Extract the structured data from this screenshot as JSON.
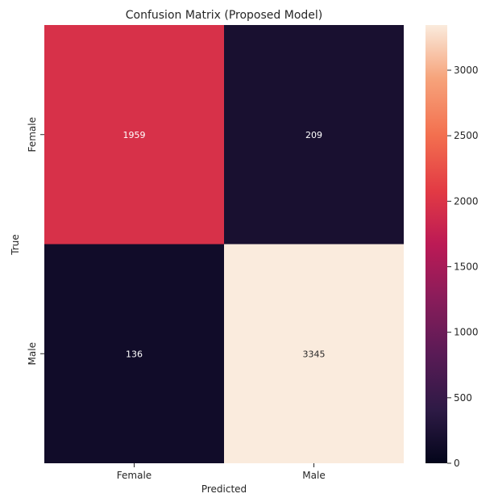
{
  "chart_data": {
    "type": "heatmap",
    "title": "Confusion Matrix (Proposed Model)",
    "xlabel": "Predicted",
    "ylabel": "True",
    "x_categories": [
      "Female",
      "Male"
    ],
    "y_categories": [
      "Female",
      "Male"
    ],
    "values": [
      [
        1959,
        209
      ],
      [
        136,
        3345
      ]
    ],
    "colorbar": {
      "colormap": "rocket",
      "range": [
        0,
        3345
      ],
      "ticks": [
        0,
        500,
        1000,
        1500,
        2000,
        2500,
        3000
      ],
      "tick_labels": [
        "0",
        "500",
        "1000",
        "1500",
        "2000",
        "2500",
        "3000"
      ]
    },
    "annotation_colors": {
      "light": "#ffffff",
      "dark": "#262626"
    }
  }
}
